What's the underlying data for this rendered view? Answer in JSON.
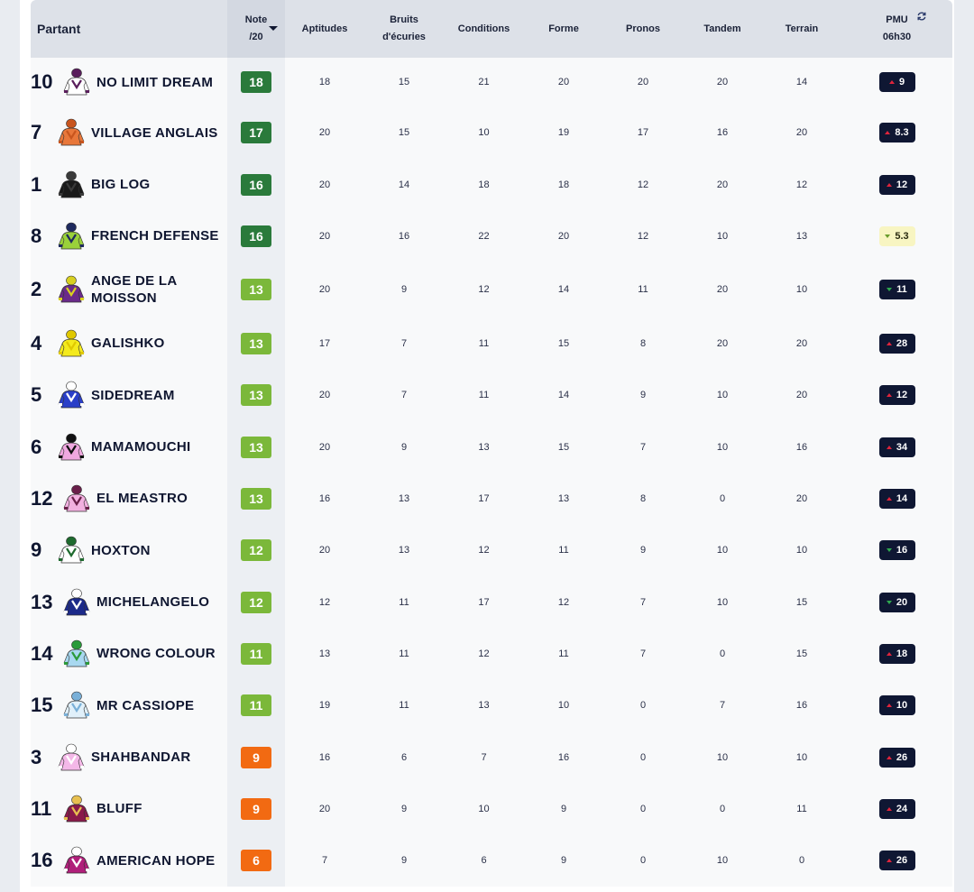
{
  "header": {
    "partant": "Partant",
    "note": [
      "Note",
      "/20"
    ],
    "aptitudes": "Aptitudes",
    "bruits": [
      "Bruits",
      "d'écuries"
    ],
    "conditions": "Conditions",
    "forme": "Forme",
    "pronos": "Pronos",
    "tandem": "Tandem",
    "terrain": "Terrain",
    "pmu": [
      "PMU",
      "06h30"
    ]
  },
  "colors": {
    "note_high": "#2a7a3b",
    "note_mid": "#7bb83a",
    "note_low": "#f26a12",
    "odds_bg": "#0f1733",
    "odds_neutral_bg": "#f8f5c2"
  },
  "rows": [
    {
      "num": "10",
      "name": [
        "NO LIMIT DREAM"
      ],
      "silk": "silk-white-purple-icon",
      "silk_colors": [
        "#ffffff",
        "#5a1e5c"
      ],
      "note": "18",
      "tier": "high",
      "aptitudes": "18",
      "bruits": "15",
      "conditions": "21",
      "forme": "20",
      "pronos": "20",
      "tandem": "20",
      "terrain": "14",
      "pmu": "9",
      "trend": "up"
    },
    {
      "num": "7",
      "name": [
        "VILLAGE ANGLAIS"
      ],
      "silk": "silk-orange-icon",
      "silk_colors": [
        "#e8773a",
        "#c8551e"
      ],
      "note": "17",
      "tier": "high",
      "aptitudes": "20",
      "bruits": "15",
      "conditions": "10",
      "forme": "19",
      "pronos": "17",
      "tandem": "16",
      "terrain": "20",
      "pmu": "8.3",
      "trend": "up"
    },
    {
      "num": "1",
      "name": [
        "BIG LOG"
      ],
      "silk": "silk-black-icon",
      "silk_colors": [
        "#1a1a1a",
        "#3a3a3a"
      ],
      "note": "16",
      "tier": "high",
      "aptitudes": "20",
      "bruits": "14",
      "conditions": "18",
      "forme": "18",
      "pronos": "12",
      "tandem": "20",
      "terrain": "12",
      "pmu": "12",
      "trend": "up"
    },
    {
      "num": "8",
      "name": [
        "FRENCH DEFENSE"
      ],
      "silk": "silk-green-navy-icon",
      "silk_colors": [
        "#9ad13a",
        "#1f2a5e"
      ],
      "note": "16",
      "tier": "high",
      "aptitudes": "20",
      "bruits": "16",
      "conditions": "22",
      "forme": "20",
      "pronos": "12",
      "tandem": "10",
      "terrain": "13",
      "pmu": "5.3",
      "trend": "down-neutral"
    },
    {
      "num": "2",
      "name": [
        "ANGE DE LA",
        "MOISSON"
      ],
      "silk": "silk-purple-yellow-icon",
      "silk_colors": [
        "#6a2a8a",
        "#d8d020"
      ],
      "note": "13",
      "tier": "mid",
      "aptitudes": "20",
      "bruits": "9",
      "conditions": "12",
      "forme": "14",
      "pronos": "11",
      "tandem": "20",
      "terrain": "10",
      "pmu": "11",
      "trend": "down"
    },
    {
      "num": "4",
      "name": [
        "GALISHKO"
      ],
      "silk": "silk-yellow-icon",
      "silk_colors": [
        "#f4ea1c",
        "#e0c800"
      ],
      "note": "13",
      "tier": "mid",
      "aptitudes": "17",
      "bruits": "7",
      "conditions": "11",
      "forme": "15",
      "pronos": "8",
      "tandem": "20",
      "terrain": "20",
      "pmu": "28",
      "trend": "up"
    },
    {
      "num": "5",
      "name": [
        "SIDEDREAM"
      ],
      "silk": "silk-blue-white-icon",
      "silk_colors": [
        "#2a3fc8",
        "#ffffff"
      ],
      "note": "13",
      "tier": "mid",
      "aptitudes": "20",
      "bruits": "7",
      "conditions": "11",
      "forme": "14",
      "pronos": "9",
      "tandem": "10",
      "terrain": "20",
      "pmu": "12",
      "trend": "up"
    },
    {
      "num": "6",
      "name": [
        "MAMAMOUCHI"
      ],
      "silk": "silk-pink-black-icon",
      "silk_colors": [
        "#f0a8e0",
        "#111111"
      ],
      "note": "13",
      "tier": "mid",
      "aptitudes": "20",
      "bruits": "9",
      "conditions": "13",
      "forme": "15",
      "pronos": "7",
      "tandem": "10",
      "terrain": "16",
      "pmu": "34",
      "trend": "up"
    },
    {
      "num": "12",
      "name": [
        "EL MEASTRO"
      ],
      "silk": "silk-pink-maroon-icon",
      "silk_colors": [
        "#f2b0e0",
        "#6a1f4a"
      ],
      "note": "13",
      "tier": "mid",
      "aptitudes": "16",
      "bruits": "13",
      "conditions": "17",
      "forme": "13",
      "pronos": "8",
      "tandem": "0",
      "terrain": "20",
      "pmu": "14",
      "trend": "up"
    },
    {
      "num": "9",
      "name": [
        "HOXTON"
      ],
      "silk": "silk-white-green-icon",
      "silk_colors": [
        "#ffffff",
        "#1e6a2e"
      ],
      "note": "12",
      "tier": "mid",
      "aptitudes": "20",
      "bruits": "13",
      "conditions": "12",
      "forme": "11",
      "pronos": "9",
      "tandem": "10",
      "terrain": "10",
      "pmu": "16",
      "trend": "down"
    },
    {
      "num": "13",
      "name": [
        "MICHELANGELO"
      ],
      "silk": "silk-navy-white-icon",
      "silk_colors": [
        "#1c2a8a",
        "#ffffff"
      ],
      "note": "12",
      "tier": "mid",
      "aptitudes": "12",
      "bruits": "11",
      "conditions": "17",
      "forme": "12",
      "pronos": "7",
      "tandem": "10",
      "terrain": "15",
      "pmu": "20",
      "trend": "down"
    },
    {
      "num": "14",
      "name": [
        "WRONG COLOUR"
      ],
      "silk": "silk-lightblue-green-icon",
      "silk_colors": [
        "#a8d8f0",
        "#2a9a3a"
      ],
      "note": "11",
      "tier": "mid",
      "aptitudes": "13",
      "bruits": "11",
      "conditions": "12",
      "forme": "11",
      "pronos": "7",
      "tandem": "0",
      "terrain": "15",
      "pmu": "18",
      "trend": "up"
    },
    {
      "num": "15",
      "name": [
        "MR CASSIOPE"
      ],
      "silk": "silk-lightblue-white-icon",
      "silk_colors": [
        "#e0f0fa",
        "#7ab0d8"
      ],
      "note": "11",
      "tier": "mid",
      "aptitudes": "19",
      "bruits": "11",
      "conditions": "13",
      "forme": "10",
      "pronos": "0",
      "tandem": "7",
      "terrain": "16",
      "pmu": "10",
      "trend": "up"
    },
    {
      "num": "3",
      "name": [
        "SHAHBANDAR"
      ],
      "silk": "silk-pink-white-icon",
      "silk_colors": [
        "#f4b8e8",
        "#ffffff"
      ],
      "note": "9",
      "tier": "low",
      "aptitudes": "16",
      "bruits": "6",
      "conditions": "7",
      "forme": "16",
      "pronos": "0",
      "tandem": "10",
      "terrain": "10",
      "pmu": "26",
      "trend": "up"
    },
    {
      "num": "11",
      "name": [
        "BLUFF"
      ],
      "silk": "silk-maroon-gold-icon",
      "silk_colors": [
        "#8a1a4a",
        "#e8c050"
      ],
      "note": "9",
      "tier": "low",
      "aptitudes": "20",
      "bruits": "9",
      "conditions": "10",
      "forme": "9",
      "pronos": "0",
      "tandem": "0",
      "terrain": "11",
      "pmu": "24",
      "trend": "up"
    },
    {
      "num": "16",
      "name": [
        "AMERICAN HOPE"
      ],
      "silk": "silk-magenta-white-icon",
      "silk_colors": [
        "#b01e7a",
        "#ffffff"
      ],
      "note": "6",
      "tier": "low",
      "aptitudes": "7",
      "bruits": "9",
      "conditions": "6",
      "forme": "9",
      "pronos": "0",
      "tandem": "10",
      "terrain": "0",
      "pmu": "26",
      "trend": "up"
    }
  ]
}
